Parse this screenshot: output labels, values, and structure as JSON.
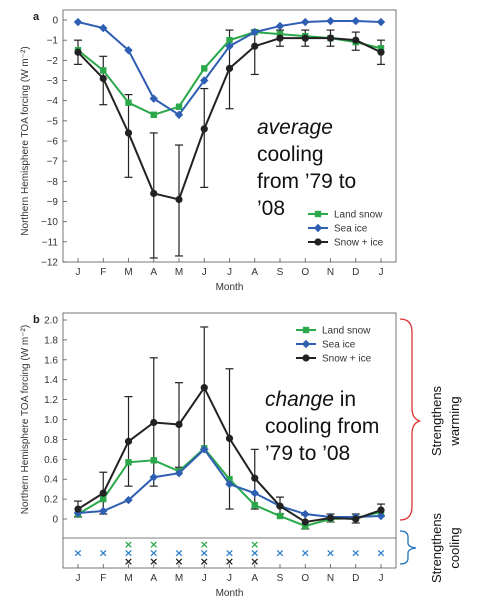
{
  "chart_data": [
    {
      "panel": "a",
      "type": "line",
      "categories": [
        "J",
        "F",
        "M",
        "A",
        "M",
        "J",
        "J",
        "A",
        "S",
        "O",
        "N",
        "D",
        "J"
      ],
      "xlabel": "Month",
      "ylabel": "Northern Hemisphere TOA forcing (W m⁻²)",
      "ylim": [
        -12,
        0
      ],
      "yticks": [
        "0",
        "−1",
        "−2",
        "−3",
        "−4",
        "−5",
        "−6",
        "−7",
        "−8",
        "−9",
        "−10",
        "−11",
        "−12"
      ],
      "grid": false,
      "legend_position": "bottom-right",
      "series": [
        {
          "name": "Land snow",
          "color": "#2aa84a",
          "marker": "square",
          "values": [
            -1.5,
            -2.5,
            -4.1,
            -4.7,
            -4.3,
            -2.4,
            -1.0,
            -0.6,
            -0.7,
            -0.8,
            -0.9,
            -1.1,
            -1.4
          ]
        },
        {
          "name": "Sea ice",
          "color": "#2f5fb3",
          "marker": "diamond",
          "values": [
            -0.1,
            -0.4,
            -1.5,
            -3.9,
            -4.7,
            -3.0,
            -1.3,
            -0.6,
            -0.3,
            -0.1,
            -0.05,
            -0.05,
            -0.1
          ]
        },
        {
          "name": "Snow + ice",
          "color": "#222222",
          "marker": "circle",
          "values": [
            -1.6,
            -2.9,
            -5.6,
            -8.6,
            -8.9,
            -5.4,
            -2.4,
            -1.3,
            -0.9,
            -0.9,
            -0.9,
            -1.0,
            -1.6
          ],
          "err_low": [
            -2.2,
            -4.2,
            -7.8,
            -11.8,
            -11.7,
            -8.3,
            -4.4,
            -2.7,
            -1.3,
            -1.3,
            -1.3,
            -1.5,
            -2.2
          ],
          "err_high": [
            -1.0,
            -1.8,
            -3.7,
            -5.6,
            -6.2,
            -3.4,
            -0.5,
            -0.5,
            -0.5,
            -0.5,
            -0.5,
            -0.6,
            -1.0
          ]
        }
      ],
      "annotation": {
        "italic": "average",
        "lines": [
          "cooling",
          "from ’79 to",
          "’08"
        ]
      }
    },
    {
      "panel": "b",
      "type": "line",
      "categories": [
        "J",
        "F",
        "M",
        "A",
        "M",
        "J",
        "J",
        "A",
        "S",
        "O",
        "N",
        "D",
        "J"
      ],
      "xlabel": "Month",
      "ylabel": "Northern Hemisphere TOA forcing (W m⁻²)",
      "ylim": [
        -0.15,
        2.0
      ],
      "yticks": [
        "0",
        "0.2",
        "0.4",
        "0.6",
        "0.8",
        "1.0",
        "1.2",
        "1.4",
        "1.6",
        "1.8",
        "2.0"
      ],
      "grid": false,
      "legend_position": "top-right",
      "series": [
        {
          "name": "Land snow",
          "color": "#2aa84a",
          "marker": "square",
          "values": [
            0.05,
            0.2,
            0.57,
            0.59,
            0.48,
            0.71,
            0.4,
            0.14,
            0.03,
            -0.07,
            0.0,
            0.01,
            0.07
          ]
        },
        {
          "name": "Sea ice",
          "color": "#2f5fb3",
          "marker": "diamond",
          "values": [
            0.06,
            0.08,
            0.19,
            0.42,
            0.46,
            0.7,
            0.35,
            0.26,
            0.13,
            0.05,
            0.02,
            0.02,
            0.03
          ]
        },
        {
          "name": "Snow + ice",
          "color": "#222222",
          "marker": "circle",
          "values": [
            0.1,
            0.26,
            0.78,
            0.97,
            0.95,
            1.32,
            0.81,
            0.41,
            0.13,
            -0.03,
            0.01,
            0.0,
            0.09
          ],
          "err_low": [
            0.02,
            0.05,
            0.33,
            0.33,
            0.52,
            0.7,
            0.1,
            0.1,
            0.05,
            -0.1,
            -0.03,
            -0.04,
            0.03
          ],
          "err_high": [
            0.18,
            0.47,
            1.23,
            1.62,
            1.37,
            1.93,
            1.51,
            0.7,
            0.22,
            0.04,
            0.05,
            0.05,
            0.15
          ]
        }
      ],
      "annotation": {
        "italic": "change",
        "after_italic": " in",
        "lines": [
          "cooling from",
          "’79 to ’08"
        ]
      },
      "significance_rows": [
        {
          "series": "Land snow",
          "color": "#2aa84a",
          "months": [
            2,
            3,
            5,
            7
          ]
        },
        {
          "series": "Sea ice",
          "color": "#2f7fc8",
          "months": [
            0,
            1,
            2,
            3,
            4,
            5,
            6,
            7,
            8,
            9,
            10,
            11,
            12
          ]
        },
        {
          "series": "Snow + ice",
          "color": "#222222",
          "months": [
            2,
            3,
            4,
            5,
            6,
            7
          ]
        }
      ],
      "significance_marker": "×",
      "side_labels": {
        "warming": [
          "Strengthens",
          "warming"
        ],
        "cooling": [
          "Strengthens",
          "cooling"
        ]
      }
    }
  ]
}
